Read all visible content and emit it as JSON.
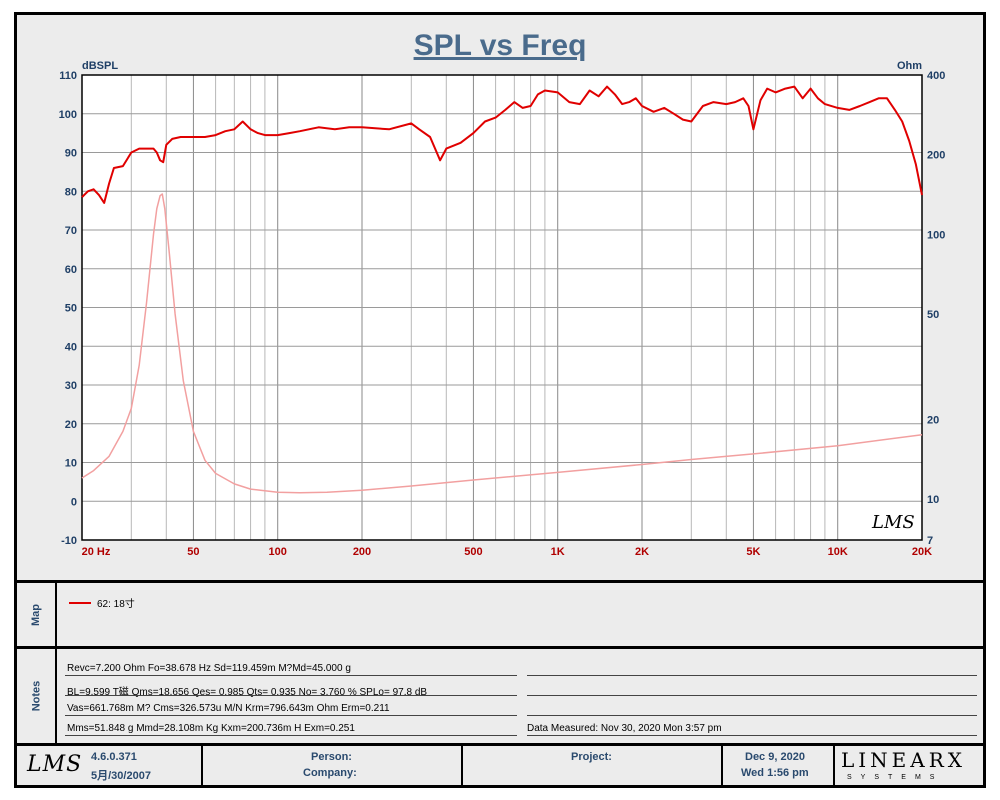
{
  "chart_data": {
    "type": "line",
    "title": "SPL vs Freq",
    "ylabel_left": "dBSPL",
    "ylabel_right": "Ohm",
    "x_scale": "log",
    "xlim": [
      20,
      20000
    ],
    "ylim_left": [
      -10,
      110
    ],
    "ylim_right": [
      7,
      400
    ],
    "y_right_scale": "log",
    "grid": true,
    "x_ticks": [
      {
        "value": 20,
        "label": "20  Hz"
      },
      {
        "value": 50,
        "label": "50"
      },
      {
        "value": 100,
        "label": "100"
      },
      {
        "value": 200,
        "label": "200"
      },
      {
        "value": 500,
        "label": "500"
      },
      {
        "value": 1000,
        "label": "1K"
      },
      {
        "value": 2000,
        "label": "2K"
      },
      {
        "value": 5000,
        "label": "5K"
      },
      {
        "value": 10000,
        "label": "10K"
      },
      {
        "value": 20000,
        "label": "20K"
      }
    ],
    "y_ticks_left": [
      -10,
      0,
      10,
      20,
      30,
      40,
      50,
      60,
      70,
      80,
      90,
      100,
      110
    ],
    "y_ticks_right": [
      {
        "value": 7,
        "label": "7"
      },
      {
        "value": 10,
        "label": "10"
      },
      {
        "value": 20,
        "label": "20"
      },
      {
        "value": 50,
        "label": "50"
      },
      {
        "value": 100,
        "label": "100"
      },
      {
        "value": 200,
        "label": "200"
      },
      {
        "value": 400,
        "label": "400"
      }
    ],
    "series": [
      {
        "axis": "left",
        "color": "#e00000",
        "x": [
          20,
          21,
          22,
          23,
          24,
          25,
          26,
          28,
          30,
          32,
          34,
          36,
          37,
          38,
          39,
          40,
          42,
          45,
          50,
          55,
          60,
          65,
          70,
          75,
          80,
          85,
          90,
          100,
          110,
          120,
          140,
          160,
          180,
          200,
          250,
          300,
          320,
          350,
          380,
          400,
          450,
          500,
          550,
          600,
          650,
          700,
          750,
          800,
          850,
          900,
          1000,
          1100,
          1200,
          1300,
          1400,
          1500,
          1600,
          1700,
          1800,
          1900,
          2000,
          2200,
          2400,
          2600,
          2800,
          3000,
          3300,
          3600,
          4000,
          4300,
          4600,
          4800,
          5000,
          5300,
          5600,
          6000,
          6500,
          7000,
          7500,
          8000,
          8500,
          9000,
          10000,
          11000,
          12000,
          13000,
          14000,
          15000,
          16000,
          17000,
          18000,
          19000,
          20000
        ],
        "values": [
          78.5,
          80.0,
          80.5,
          79.0,
          77.0,
          82.0,
          86.0,
          86.5,
          90.0,
          91.0,
          91.0,
          91.0,
          90.0,
          88.0,
          87.5,
          92.0,
          93.5,
          94.0,
          94.0,
          94.0,
          94.5,
          95.5,
          96.0,
          98.0,
          96.0,
          95.0,
          94.5,
          94.5,
          95.0,
          95.5,
          96.5,
          96.0,
          96.5,
          96.5,
          96.0,
          97.5,
          96.0,
          94.0,
          88.0,
          91.0,
          92.5,
          95.0,
          98.0,
          99.0,
          101.0,
          103.0,
          101.5,
          102.0,
          105.0,
          106.0,
          105.5,
          103.0,
          102.5,
          106.0,
          104.5,
          107.0,
          105.0,
          102.5,
          103.0,
          104.0,
          102.0,
          100.5,
          101.5,
          100.0,
          98.5,
          98.0,
          102.0,
          103.0,
          102.5,
          103.0,
          104.0,
          102.0,
          96.0,
          103.5,
          106.5,
          105.5,
          106.5,
          107.0,
          104.0,
          106.5,
          104.0,
          102.5,
          101.5,
          101.0,
          102.0,
          103.0,
          104.0,
          104.0,
          101.0,
          98.0,
          93.0,
          87.0,
          79.0
        ]
      },
      {
        "axis": "right",
        "color": "#f2a0a0",
        "x": [
          20,
          22,
          25,
          28,
          30,
          32,
          34,
          36,
          37,
          38,
          38.7,
          39.5,
          41,
          43,
          46,
          50,
          55,
          60,
          70,
          80,
          100,
          120,
          150,
          200,
          300,
          500,
          1000,
          2000,
          3000,
          5000,
          10000,
          20000
        ],
        "values": [
          12.0,
          12.8,
          14.5,
          18.0,
          22.0,
          32.0,
          55.0,
          100.0,
          125.0,
          140.0,
          142.0,
          125.0,
          85.0,
          50.0,
          28.0,
          18.0,
          14.0,
          12.5,
          11.4,
          10.9,
          10.6,
          10.55,
          10.6,
          10.8,
          11.2,
          11.8,
          12.6,
          13.5,
          14.1,
          14.8,
          15.9,
          17.5
        ]
      }
    ]
  },
  "chart_logo": "LMS",
  "map": {
    "label": "Map",
    "legend_entry": "62: 18寸"
  },
  "notes": {
    "label": "Notes",
    "lines": [
      "Revc=7.200 Ohm  Fo=38.678 Hz  Sd=119.459m M?Md=45.000 g",
      "BL=9.599 T磁  Qms=18.656  Qes= 0.985  Qts= 0.935  No= 3.760 %  SPLo= 97.8 dB",
      "Vas=661.768m M? Cms=326.573u M/N  Krm=796.643m Ohm  Erm=0.211",
      "Mms=51.848 g  Mmd=28.108m Kg  Kxm=200.736m H  Exm=0.251"
    ],
    "measured": "Data Measured: Nov 30, 2020  Mon  3:57 pm"
  },
  "footer": {
    "logo": "LMS",
    "version": "4.6.0.371",
    "version_date": "5月/30/2007",
    "person_label": "Person:",
    "company_label": "Company:",
    "project_label": "Project:",
    "date": "Dec  9, 2020",
    "time": "Wed  1:56 pm",
    "brand": "LINEARX",
    "brand_sub": "SYSTEMS"
  }
}
